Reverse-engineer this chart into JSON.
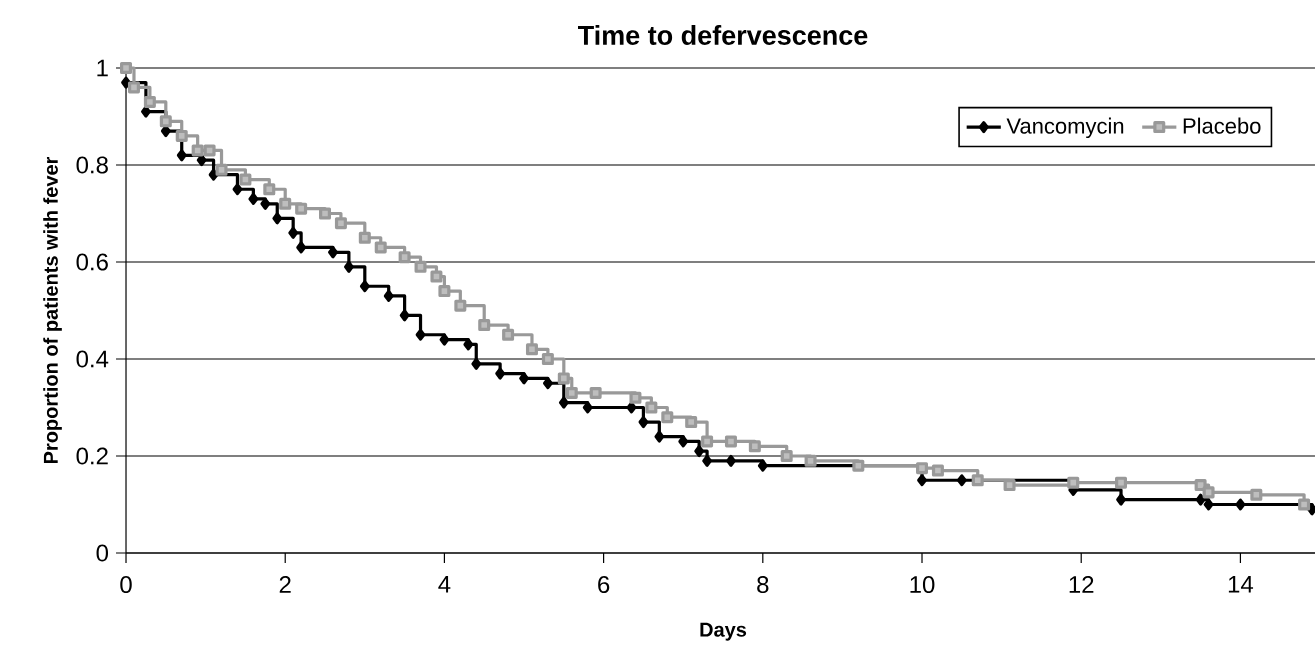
{
  "chart_data": {
    "type": "step",
    "title": "Time to defervescence",
    "xlabel": "Days",
    "ylabel": "Proportion of patients with fever",
    "xlim": [
      0,
      15
    ],
    "ylim": [
      0,
      1
    ],
    "xticks": [
      0,
      2,
      4,
      6,
      8,
      10,
      12,
      14
    ],
    "yticks": [
      0,
      0.2,
      0.4,
      0.6,
      0.8,
      1
    ],
    "grid": "y",
    "legend": "top right",
    "series": [
      {
        "name": "Vancomycin",
        "color": "#000000",
        "marker": "diamond",
        "x": [
          0,
          0.25,
          0.5,
          0.7,
          0.95,
          1.1,
          1.4,
          1.6,
          1.75,
          1.9,
          2.1,
          2.2,
          2.6,
          2.8,
          3.0,
          3.3,
          3.5,
          3.7,
          4.0,
          4.3,
          4.4,
          4.7,
          5.0,
          5.3,
          5.5,
          5.8,
          6.35,
          6.5,
          6.7,
          7.0,
          7.2,
          7.3,
          7.6,
          8.0,
          10.0,
          10.5,
          11.9,
          12.5,
          13.5,
          13.6,
          14.0,
          14.9
        ],
        "values": [
          0.97,
          0.91,
          0.87,
          0.82,
          0.81,
          0.78,
          0.75,
          0.73,
          0.72,
          0.69,
          0.66,
          0.63,
          0.62,
          0.59,
          0.55,
          0.53,
          0.49,
          0.45,
          0.44,
          0.43,
          0.39,
          0.37,
          0.36,
          0.35,
          0.31,
          0.3,
          0.3,
          0.27,
          0.24,
          0.23,
          0.21,
          0.19,
          0.19,
          0.18,
          0.15,
          0.15,
          0.13,
          0.11,
          0.11,
          0.1,
          0.1,
          0.09
        ]
      },
      {
        "name": "Placebo",
        "color": "#999999",
        "marker": "square",
        "x": [
          0,
          0.1,
          0.3,
          0.5,
          0.7,
          0.9,
          1.05,
          1.2,
          1.5,
          1.8,
          2.0,
          2.2,
          2.5,
          2.7,
          3.0,
          3.2,
          3.5,
          3.7,
          3.9,
          4.0,
          4.2,
          4.5,
          4.8,
          5.1,
          5.3,
          5.5,
          5.6,
          5.9,
          6.4,
          6.6,
          6.8,
          7.1,
          7.3,
          7.6,
          7.9,
          8.3,
          8.6,
          9.2,
          10.0,
          10.2,
          10.7,
          11.1,
          11.9,
          12.5,
          13.5,
          13.6,
          14.2,
          14.8
        ],
        "values": [
          1.0,
          0.96,
          0.93,
          0.89,
          0.86,
          0.83,
          0.83,
          0.79,
          0.77,
          0.75,
          0.72,
          0.71,
          0.7,
          0.68,
          0.65,
          0.63,
          0.61,
          0.59,
          0.57,
          0.54,
          0.51,
          0.47,
          0.45,
          0.42,
          0.4,
          0.36,
          0.33,
          0.33,
          0.32,
          0.3,
          0.28,
          0.27,
          0.23,
          0.23,
          0.22,
          0.2,
          0.19,
          0.18,
          0.175,
          0.17,
          0.15,
          0.14,
          0.145,
          0.145,
          0.14,
          0.125,
          0.12,
          0.1
        ]
      }
    ]
  }
}
